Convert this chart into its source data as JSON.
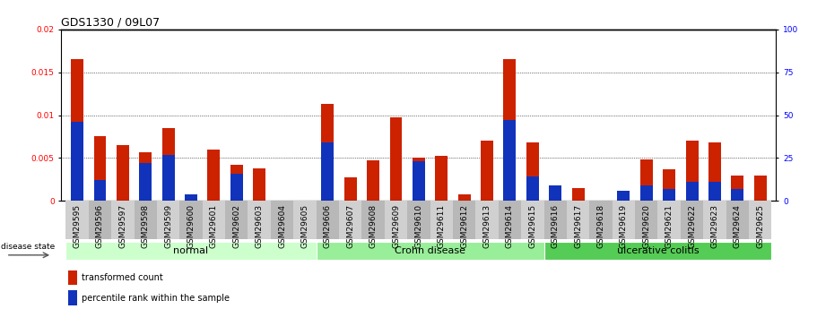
{
  "title": "GDS1330 / 09L07",
  "samples": [
    "GSM29595",
    "GSM29596",
    "GSM29597",
    "GSM29598",
    "GSM29599",
    "GSM29600",
    "GSM29601",
    "GSM29602",
    "GSM29603",
    "GSM29604",
    "GSM29605",
    "GSM29606",
    "GSM29607",
    "GSM29608",
    "GSM29609",
    "GSM29610",
    "GSM29611",
    "GSM29612",
    "GSM29613",
    "GSM29614",
    "GSM29615",
    "GSM29616",
    "GSM29617",
    "GSM29618",
    "GSM29619",
    "GSM29620",
    "GSM29621",
    "GSM29622",
    "GSM29623",
    "GSM29624",
    "GSM29625"
  ],
  "red_values": [
    0.0165,
    0.0075,
    0.0065,
    0.0057,
    0.0085,
    0.0,
    0.006,
    0.0042,
    0.0038,
    0.0,
    0.0,
    0.0113,
    0.0027,
    0.0047,
    0.0097,
    0.005,
    0.0052,
    0.0008,
    0.007,
    0.0165,
    0.0068,
    0.0003,
    0.0015,
    0.0,
    0.0,
    0.0048,
    0.0037,
    0.007,
    0.0068,
    0.003,
    0.003
  ],
  "blue_values_pct": [
    46,
    12,
    0,
    22,
    27,
    4,
    0,
    16,
    0,
    0,
    0,
    34,
    0,
    0,
    0,
    23,
    0,
    0,
    0,
    47,
    14,
    9,
    0,
    0,
    6,
    9,
    7,
    11,
    11,
    7,
    0
  ],
  "groups": [
    {
      "label": "normal",
      "start": 0,
      "end": 11,
      "color": "#ccffcc"
    },
    {
      "label": "Crohn disease",
      "start": 11,
      "end": 21,
      "color": "#99ee99"
    },
    {
      "label": "ulcerative colitis",
      "start": 21,
      "end": 31,
      "color": "#55cc55"
    }
  ],
  "ylim_left": [
    0,
    0.02
  ],
  "ylim_right": [
    0,
    100
  ],
  "yticks_left": [
    0,
    0.005,
    0.01,
    0.015,
    0.02
  ],
  "ytick_labels_left": [
    "0",
    "0.005",
    "0.01",
    "0.015",
    "0.02"
  ],
  "yticks_right": [
    0,
    25,
    50,
    75,
    100
  ],
  "ytick_labels_right": [
    "0",
    "25",
    "50",
    "75",
    "100"
  ],
  "red_color": "#cc2200",
  "blue_color": "#1133bb",
  "bar_width": 0.55,
  "title_fontsize": 9,
  "tick_fontsize": 6.5,
  "label_fontsize": 8,
  "disease_state_label": "disease state",
  "legend1": "transformed count",
  "legend2": "percentile rank within the sample",
  "xtick_bg_even": "#d0d0d0",
  "xtick_bg_odd": "#b8b8b8"
}
